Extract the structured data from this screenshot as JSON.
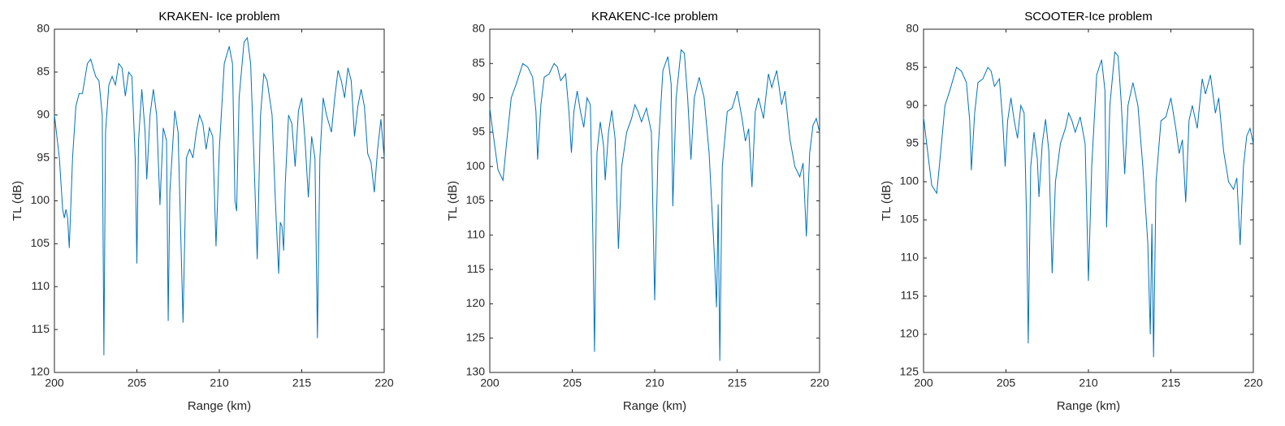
{
  "chart_data": [
    {
      "type": "line",
      "title": "KRAKEN- Ice problem",
      "xlabel": "Range (km)",
      "ylabel": "TL (dB)",
      "xlim": [
        200,
        220
      ],
      "xticks": [
        200,
        205,
        210,
        215,
        220
      ],
      "ylim": [
        80,
        120
      ],
      "yticks": [
        80,
        85,
        90,
        95,
        100,
        105,
        110,
        115,
        120
      ],
      "y_reversed": true,
      "color": "#0072bd",
      "x": [
        200,
        200.3,
        200.5,
        200.6,
        200.7,
        200.8,
        200.9,
        201.1,
        201.3,
        201.5,
        201.7,
        202,
        202.2,
        202.5,
        202.7,
        202.9,
        203,
        203.1,
        203.3,
        203.5,
        203.7,
        203.9,
        204.1,
        204.3,
        204.5,
        204.7,
        204.9,
        205,
        205.1,
        205.3,
        205.5,
        205.6,
        205.8,
        206,
        206.2,
        206.4,
        206.6,
        206.8,
        206.9,
        207,
        207.3,
        207.5,
        207.8,
        208,
        208.2,
        208.4,
        208.6,
        208.8,
        209,
        209.2,
        209.4,
        209.6,
        209.8,
        210,
        210.3,
        210.6,
        210.8,
        210.95,
        211.05,
        211.2,
        211.5,
        211.7,
        211.9,
        212.1,
        212.3,
        212.5,
        212.7,
        212.9,
        213.2,
        213.4,
        213.6,
        213.7,
        213.8,
        213.9,
        214,
        214.2,
        214.4,
        214.6,
        214.8,
        215,
        215.2,
        215.4,
        215.6,
        215.8,
        215.95,
        216.1,
        216.3,
        216.5,
        216.8,
        217,
        217.2,
        217.4,
        217.6,
        217.8,
        218,
        218.2,
        218.4,
        218.6,
        218.8,
        219,
        219.2,
        219.4,
        219.6,
        219.8,
        220
      ],
      "values": [
        90,
        95,
        101,
        102,
        101,
        102,
        105.5,
        95,
        89,
        87.5,
        87.5,
        84,
        83.5,
        85.5,
        86,
        90,
        118,
        92,
        86.5,
        85.5,
        86.5,
        84,
        84.5,
        87.8,
        85,
        85.5,
        95,
        107.3,
        93,
        87,
        92,
        97.5,
        90,
        87,
        90,
        100.5,
        91.5,
        93,
        114,
        99,
        89.5,
        92,
        114.2,
        95,
        94,
        95,
        92,
        90,
        91,
        94,
        91.5,
        92.5,
        105.3,
        94,
        84,
        82,
        84,
        100,
        101.2,
        88,
        81.5,
        81,
        84,
        95,
        106.8,
        90,
        85.2,
        86,
        90,
        100,
        108.5,
        102.5,
        103,
        105.8,
        98,
        90,
        91,
        96,
        89.5,
        88,
        93,
        99.6,
        92.5,
        95,
        116,
        95,
        88,
        90,
        92,
        88,
        84.8,
        86,
        88,
        84.5,
        86,
        92.5,
        89,
        87,
        89,
        94.5,
        95.5,
        99,
        94,
        90.5,
        95
      ]
    },
    {
      "type": "line",
      "title": "KRAKENC-Ice problem",
      "xlabel": "Range (km)",
      "ylabel": "TL (dB)",
      "xlim": [
        200,
        220
      ],
      "xticks": [
        200,
        205,
        210,
        215,
        220
      ],
      "ylim": [
        80,
        130
      ],
      "yticks": [
        80,
        85,
        90,
        95,
        100,
        105,
        110,
        115,
        120,
        125,
        130
      ],
      "y_reversed": true,
      "color": "#0072bd",
      "x": [
        200,
        200.3,
        200.5,
        200.8,
        201,
        201.3,
        201.6,
        202,
        202.3,
        202.6,
        202.8,
        202.9,
        203.1,
        203.3,
        203.6,
        203.9,
        204.1,
        204.3,
        204.6,
        204.8,
        204.95,
        205.1,
        205.3,
        205.5,
        205.7,
        205.9,
        206.1,
        206.25,
        206.35,
        206.5,
        206.7,
        206.9,
        207,
        207.2,
        207.4,
        207.6,
        207.8,
        208,
        208.3,
        208.6,
        208.8,
        209,
        209.2,
        209.5,
        209.8,
        210,
        210.2,
        210.5,
        210.8,
        211,
        211.1,
        211.3,
        211.6,
        211.8,
        212,
        212.2,
        212.4,
        212.7,
        213,
        213.3,
        213.6,
        213.75,
        213.85,
        213.95,
        214.1,
        214.4,
        214.7,
        215,
        215.3,
        215.5,
        215.7,
        215.9,
        216.1,
        216.3,
        216.6,
        216.9,
        217.1,
        217.4,
        217.7,
        217.9,
        218.2,
        218.5,
        218.8,
        219,
        219.2,
        219.4,
        219.6,
        219.8,
        220
      ],
      "values": [
        91.5,
        97,
        100.5,
        102,
        97,
        90,
        88,
        85,
        85.5,
        87,
        92,
        99,
        91,
        87,
        86.5,
        85,
        85.5,
        87.5,
        86.5,
        92,
        98,
        92,
        89,
        92,
        94.3,
        90,
        91,
        110,
        127,
        98,
        93.5,
        97,
        102,
        95,
        91.8,
        96,
        112,
        100,
        95,
        93,
        91,
        92,
        93.5,
        91.5,
        95,
        119.5,
        98,
        86,
        84,
        88,
        105.8,
        90,
        83,
        83.5,
        90,
        99,
        90,
        87,
        90,
        98,
        112,
        120.5,
        105.5,
        128.3,
        100,
        92,
        91.5,
        89,
        93,
        96.3,
        94.5,
        103,
        92,
        90,
        93,
        86.5,
        88.5,
        86,
        91,
        89,
        96,
        100,
        101.5,
        99.5,
        110.2,
        98,
        94,
        93,
        95
      ]
    },
    {
      "type": "line",
      "title": "SCOOTER-Ice problem",
      "xlabel": "Range (km)",
      "ylabel": "TL (dB)",
      "xlim": [
        200,
        220
      ],
      "xticks": [
        200,
        205,
        210,
        215,
        220
      ],
      "ylim": [
        80,
        125
      ],
      "yticks": [
        80,
        85,
        90,
        95,
        100,
        105,
        110,
        115,
        120,
        125
      ],
      "y_reversed": true,
      "color": "#0072bd",
      "x": [
        200,
        200.3,
        200.5,
        200.8,
        201,
        201.3,
        201.6,
        202,
        202.3,
        202.6,
        202.8,
        202.9,
        203.1,
        203.3,
        203.6,
        203.9,
        204.1,
        204.3,
        204.6,
        204.8,
        204.95,
        205.1,
        205.3,
        205.5,
        205.7,
        205.9,
        206.1,
        206.25,
        206.35,
        206.5,
        206.7,
        206.9,
        207,
        207.2,
        207.4,
        207.6,
        207.8,
        208,
        208.3,
        208.6,
        208.8,
        209,
        209.2,
        209.5,
        209.8,
        210,
        210.2,
        210.5,
        210.8,
        211,
        211.1,
        211.3,
        211.6,
        211.8,
        212,
        212.2,
        212.4,
        212.7,
        213,
        213.3,
        213.6,
        213.75,
        213.85,
        213.95,
        214.1,
        214.4,
        214.7,
        215,
        215.3,
        215.5,
        215.7,
        215.9,
        216.1,
        216.3,
        216.6,
        216.9,
        217.1,
        217.4,
        217.7,
        217.9,
        218.2,
        218.5,
        218.8,
        219,
        219.2,
        219.4,
        219.6,
        219.8,
        220
      ],
      "values": [
        91.5,
        97,
        100.5,
        101.5,
        97,
        90,
        88,
        85,
        85.5,
        87,
        92,
        98.5,
        91,
        87,
        86.5,
        85,
        85.5,
        87.5,
        86.5,
        92,
        98,
        92,
        89,
        92,
        94.3,
        90,
        91,
        105,
        121.2,
        98,
        93.5,
        97,
        102,
        95,
        91.8,
        96,
        112,
        100,
        95,
        93,
        91,
        92,
        93.5,
        91.5,
        95,
        113,
        98,
        86,
        84,
        88,
        106,
        90,
        83,
        83.5,
        90,
        99,
        90,
        87,
        90,
        98,
        108,
        120,
        105.5,
        123,
        100,
        92,
        91.5,
        89,
        93,
        96.3,
        94.5,
        102.7,
        92,
        90,
        93,
        86.5,
        88.5,
        86,
        91,
        89,
        96,
        100,
        101,
        99.5,
        108.3,
        98,
        94,
        93,
        95
      ]
    }
  ]
}
